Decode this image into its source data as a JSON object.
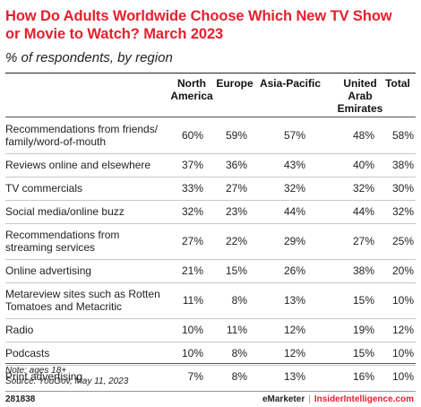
{
  "title": "How Do Adults Worldwide Choose Which New TV Show or Movie to Watch? March 2023",
  "subtitle": "% of respondents, by region",
  "chart_data": {
    "type": "table",
    "columns": [
      "North America",
      "Europe",
      "Asia-Pacific",
      "United Arab Emirates",
      "Total"
    ],
    "column_headers": [
      [
        "North",
        "America"
      ],
      [
        "Europe"
      ],
      [
        "Asia-Pacific"
      ],
      [
        "United",
        "Arab",
        "Emirates"
      ],
      [
        "Total"
      ]
    ],
    "rows": [
      {
        "label": [
          "Recommendations from friends/",
          "family/word-of-mouth"
        ],
        "values": [
          "60%",
          "59%",
          "57%",
          "48%",
          "58%"
        ]
      },
      {
        "label": [
          "Reviews online and elsewhere"
        ],
        "values": [
          "37%",
          "36%",
          "43%",
          "40%",
          "38%"
        ]
      },
      {
        "label": [
          "TV commercials"
        ],
        "values": [
          "33%",
          "27%",
          "32%",
          "32%",
          "30%"
        ]
      },
      {
        "label": [
          "Social media/online buzz"
        ],
        "values": [
          "32%",
          "23%",
          "44%",
          "44%",
          "32%"
        ]
      },
      {
        "label": [
          "Recommendations from",
          "streaming services"
        ],
        "values": [
          "27%",
          "22%",
          "29%",
          "27%",
          "25%"
        ]
      },
      {
        "label": [
          "Online advertising"
        ],
        "values": [
          "21%",
          "15%",
          "26%",
          "38%",
          "20%"
        ]
      },
      {
        "label": [
          "Metareview sites such as Rotten",
          "Tomatoes and Metacritic"
        ],
        "values": [
          "11%",
          "8%",
          "13%",
          "15%",
          "10%"
        ]
      },
      {
        "label": [
          "Radio"
        ],
        "values": [
          "10%",
          "11%",
          "12%",
          "19%",
          "12%"
        ]
      },
      {
        "label": [
          "Podcasts"
        ],
        "values": [
          "10%",
          "8%",
          "12%",
          "15%",
          "10%"
        ]
      },
      {
        "label": [
          "Print advertising"
        ],
        "values": [
          "7%",
          "8%",
          "13%",
          "16%",
          "10%"
        ]
      }
    ]
  },
  "note": "Note: ages 18+",
  "source": "Source: YouGov, May 11, 2023",
  "footer": {
    "code": "281838",
    "brand_em": "eMarketer",
    "brand_sep": "|",
    "brand_ii": "InsiderIntelligence.com"
  }
}
